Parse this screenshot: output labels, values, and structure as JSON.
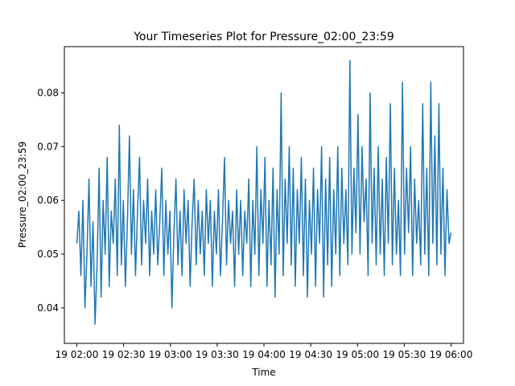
{
  "chart_data": {
    "type": "line",
    "title": "Your Timeseries Plot for Pressure_02:00_23:59",
    "xlabel": "Time",
    "ylabel": "Pressure_02:00_23:59",
    "x_ticks": [
      "19 02:00",
      "19 02:30",
      "19 03:00",
      "19 03:30",
      "19 04:00",
      "19 04:30",
      "19 05:00",
      "19 05:30",
      "19 06:00"
    ],
    "y_ticks": [
      "0.04",
      "0.05",
      "0.06",
      "0.07",
      "0.08"
    ],
    "xlim": [
      "19 01:52",
      "19 06:08"
    ],
    "ylim": [
      0.0334,
      0.0886
    ],
    "grid": false,
    "series": [
      {
        "color": "#1f77b4",
        "x_start": "19 02:00",
        "x_end": "19 06:00",
        "approximate_values": [
          0.052,
          0.058,
          0.046,
          0.06,
          0.04,
          0.05,
          0.064,
          0.044,
          0.056,
          0.037,
          0.048,
          0.066,
          0.042,
          0.06,
          0.05,
          0.068,
          0.044,
          0.058,
          0.052,
          0.064,
          0.046,
          0.074,
          0.048,
          0.06,
          0.044,
          0.056,
          0.072,
          0.05,
          0.062,
          0.046,
          0.058,
          0.068,
          0.048,
          0.06,
          0.052,
          0.064,
          0.046,
          0.058,
          0.05,
          0.062,
          0.048,
          0.056,
          0.066,
          0.046,
          0.06,
          0.05,
          0.058,
          0.04,
          0.054,
          0.064,
          0.048,
          0.058,
          0.046,
          0.062,
          0.052,
          0.06,
          0.044,
          0.056,
          0.064,
          0.048,
          0.06,
          0.05,
          0.058,
          0.046,
          0.062,
          0.052,
          0.06,
          0.044,
          0.058,
          0.05,
          0.062,
          0.046,
          0.056,
          0.068,
          0.048,
          0.06,
          0.052,
          0.058,
          0.044,
          0.062,
          0.05,
          0.06,
          0.046,
          0.058,
          0.052,
          0.064,
          0.044,
          0.06,
          0.05,
          0.07,
          0.046,
          0.062,
          0.052,
          0.068,
          0.044,
          0.06,
          0.048,
          0.066,
          0.042,
          0.062,
          0.05,
          0.08,
          0.046,
          0.064,
          0.052,
          0.07,
          0.048,
          0.066,
          0.044,
          0.062,
          0.052,
          0.068,
          0.046,
          0.064,
          0.042,
          0.06,
          0.05,
          0.066,
          0.044,
          0.062,
          0.052,
          0.07,
          0.042,
          0.064,
          0.048,
          0.068,
          0.044,
          0.062,
          0.05,
          0.07,
          0.046,
          0.066,
          0.052,
          0.062,
          0.048,
          0.086,
          0.05,
          0.066,
          0.054,
          0.076,
          0.05,
          0.07,
          0.056,
          0.064,
          0.046,
          0.08,
          0.052,
          0.066,
          0.048,
          0.07,
          0.05,
          0.064,
          0.046,
          0.068,
          0.052,
          0.078,
          0.048,
          0.066,
          0.05,
          0.06,
          0.046,
          0.082,
          0.05,
          0.066,
          0.054,
          0.07,
          0.046,
          0.064,
          0.052,
          0.06,
          0.048,
          0.078,
          0.05,
          0.066,
          0.046,
          0.082,
          0.052,
          0.072,
          0.048,
          0.078,
          0.05,
          0.066,
          0.046,
          0.062,
          0.052,
          0.054
        ]
      }
    ]
  }
}
